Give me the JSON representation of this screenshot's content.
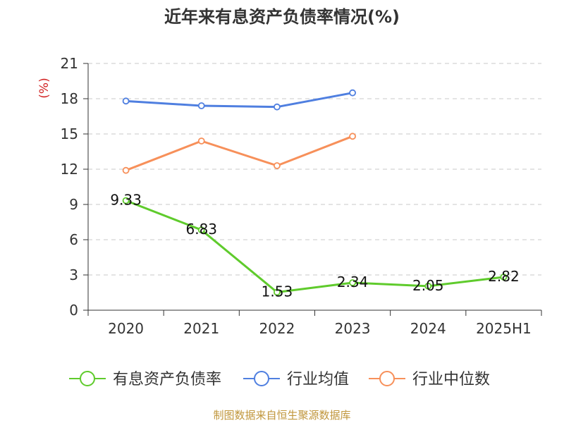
{
  "chart_data": {
    "type": "line",
    "title": "近年来有息资产负债率情况(%)",
    "ylabel": "(%)",
    "categories": [
      "2020",
      "2021",
      "2022",
      "2023",
      "2024",
      "2025H1"
    ],
    "ylim": [
      0,
      21
    ],
    "yticks": [
      0,
      3,
      6,
      9,
      12,
      15,
      18,
      21
    ],
    "grid": true,
    "legend_position": "bottom",
    "series": [
      {
        "name": "有息资产负债率",
        "color": "#5fcb2c",
        "values": [
          9.33,
          6.83,
          1.53,
          2.34,
          2.05,
          2.82
        ],
        "labels": [
          "9.33",
          "6.83",
          "1.53",
          "2.34",
          "2.05",
          "2.82"
        ]
      },
      {
        "name": "行业均值",
        "color": "#4f7fe0",
        "values": [
          17.8,
          17.4,
          17.3,
          18.5,
          null,
          null
        ]
      },
      {
        "name": "行业中位数",
        "color": "#f7905a",
        "values": [
          11.9,
          14.4,
          12.3,
          14.8,
          null,
          null
        ]
      }
    ]
  },
  "source": "制图数据来自恒生聚源数据库",
  "colors": {
    "unit_label": "#d22222",
    "grid": "#c8c8c8",
    "axis": "#333333"
  }
}
